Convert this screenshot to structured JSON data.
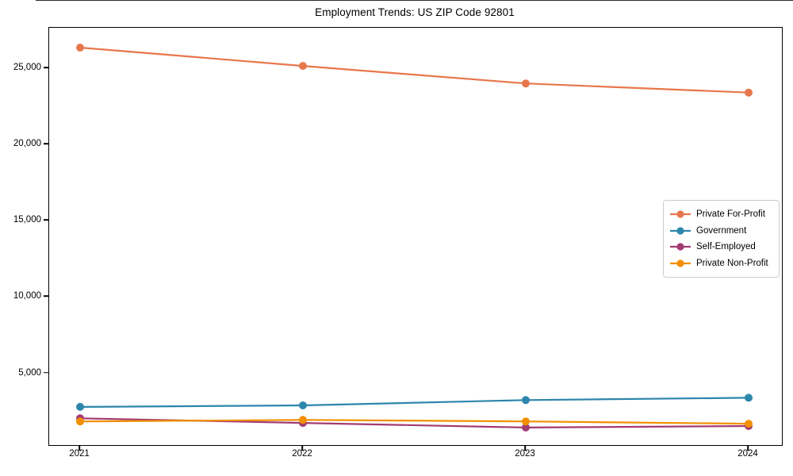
{
  "figure": {
    "title": "Employment Trends: US ZIP Code 92801"
  },
  "chart_data": {
    "type": "line",
    "title": "Employment Trends: US ZIP Code 92801",
    "xlabel": "",
    "ylabel": "",
    "categories": [
      "2021",
      "2022",
      "2023",
      "2024"
    ],
    "series": [
      {
        "name": "Private For-Profit",
        "color": "#e8764b",
        "values": [
          26350,
          25150,
          24000,
          23400
        ]
      },
      {
        "name": "Government",
        "color": "#2e86ab",
        "values": [
          2800,
          2900,
          3250,
          3400
        ]
      },
      {
        "name": "Self-Employed",
        "color": "#a23b72",
        "values": [
          2050,
          1750,
          1450,
          1550
        ]
      },
      {
        "name": "Private Non-Profit",
        "color": "#f18f01",
        "values": [
          1850,
          1950,
          1850,
          1700
        ]
      }
    ],
    "ylim": [
      300,
      27650
    ],
    "yticks": [
      5000,
      10000,
      15000,
      20000,
      25000
    ],
    "ytick_labels": [
      "5,000",
      "10,000",
      "15,000",
      "20,000",
      "25,000"
    ],
    "grid": false,
    "legend_position": "center-right",
    "marker": "circle",
    "line_width": 2.2,
    "marker_radius": 5
  }
}
